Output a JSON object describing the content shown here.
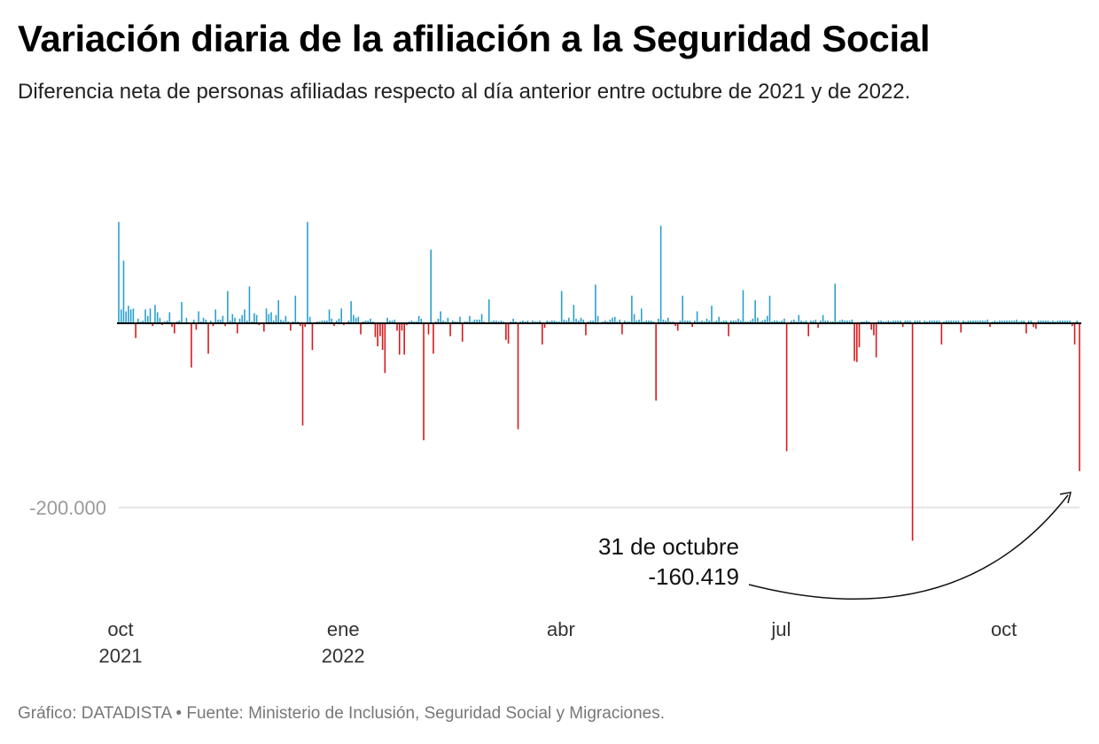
{
  "header": {
    "title": "Variación diaria de la afiliación a la Seguridad Social",
    "subtitle": "Diferencia neta de personas afiliadas respecto al día anterior entre octubre de 2021 y de 2022."
  },
  "footer": {
    "text": "Gráfico: DATADISTA • Fuente: Ministerio de Inclusión, Seguridad Social y Migraciones."
  },
  "colors": {
    "positive": "#2b9fcb",
    "negative": "#d7191c",
    "zero_line": "#000000",
    "gridline": "#dddddd",
    "tick_label": "#9a9a9a"
  },
  "chart_data": {
    "type": "bar",
    "title": "Variación diaria de la afiliación a la Seguridad Social",
    "xlabel": "",
    "ylabel": "",
    "ylim": [
      -310000,
      200000
    ],
    "y_ticks": [
      {
        "value": -200000,
        "label": "-200.000"
      }
    ],
    "x_ticks": [
      {
        "index": 0,
        "line1": "oct",
        "line2": "2021"
      },
      {
        "index": 92,
        "line1": "ene",
        "line2": "2022"
      },
      {
        "index": 182,
        "line1": "abr",
        "line2": ""
      },
      {
        "index": 273,
        "line1": "jul",
        "line2": ""
      },
      {
        "index": 365,
        "line1": "oct",
        "line2": ""
      }
    ],
    "start_date": "2021-10-01",
    "end_date": "2022-10-31",
    "series": [
      {
        "name": "Diferencia neta diaria",
        "values": [
          110000,
          15000,
          68000,
          13000,
          19000,
          15000,
          16000,
          -16000,
          5000,
          2000,
          3000,
          15000,
          8000,
          16000,
          -3000,
          20000,
          12000,
          6000,
          -2000,
          2000,
          3000,
          12000,
          -4000,
          -11000,
          2000,
          3000,
          23000,
          1000,
          6000,
          1000,
          -48000,
          4000,
          -7000,
          13000,
          2000,
          6000,
          4000,
          -33000,
          3000,
          -3000,
          15000,
          4000,
          4000,
          8000,
          -3000,
          35000,
          3000,
          10000,
          6000,
          -11000,
          5000,
          9000,
          15000,
          3000,
          40000,
          2000,
          11000,
          9000,
          -2000,
          1000,
          -9000,
          16000,
          10000,
          12000,
          3000,
          9000,
          25000,
          4000,
          3000,
          8000,
          2000,
          -8000,
          2000,
          30000,
          2000,
          -3000,
          -111000,
          -4000,
          110000,
          7000,
          -29000,
          1000,
          2000,
          2000,
          3000,
          3000,
          3000,
          15000,
          5000,
          -3000,
          3000,
          5000,
          16000,
          -2000,
          1000,
          3000,
          24000,
          9000,
          6000,
          7000,
          -12000,
          2000,
          3000,
          3000,
          5000,
          2000,
          -15000,
          -25000,
          -14000,
          -29000,
          -54000,
          6000,
          3000,
          3000,
          4000,
          -8000,
          -34000,
          -8000,
          -34000,
          -2000,
          2000,
          3000,
          2000,
          2000,
          8000,
          5000,
          -127000,
          1000,
          -12000,
          80000,
          -33000,
          2000,
          5000,
          13000,
          3000,
          2000,
          6000,
          -14000,
          3000,
          2000,
          2000,
          7000,
          -20000,
          2000,
          2000,
          8000,
          2000,
          4000,
          4000,
          4000,
          10000,
          2000,
          1000,
          26000,
          2000,
          3000,
          3000,
          2000,
          3000,
          2000,
          -18000,
          -22000,
          2000,
          5000,
          2000,
          -115000,
          2000,
          3000,
          2000,
          3000,
          1000,
          3000,
          2000,
          2000,
          3000,
          -23000,
          -5000,
          3000,
          2000,
          3000,
          3000,
          2000,
          2000,
          35000,
          4000,
          3000,
          6000,
          2000,
          20000,
          5000,
          3000,
          6000,
          4000,
          -13000,
          2000,
          3000,
          3000,
          42000,
          8000,
          1000,
          2000,
          3000,
          2000,
          4000,
          6000,
          7000,
          2000,
          4000,
          -12000,
          3000,
          2000,
          2000,
          30000,
          10000,
          3000,
          4000,
          16000,
          2000,
          3000,
          3000,
          3000,
          2000,
          -84000,
          5000,
          106000,
          4000,
          3000,
          6000,
          2000,
          2000,
          -3000,
          -8000,
          3000,
          30000,
          3000,
          3000,
          3000,
          -4000,
          3000,
          13000,
          2000,
          3000,
          2000,
          5000,
          3000,
          19000,
          2000,
          3000,
          7000,
          2000,
          3000,
          3000,
          -14000,
          3000,
          3000,
          3000,
          5000,
          3000,
          36000,
          2000,
          2000,
          3000,
          5000,
          25000,
          6000,
          2000,
          3000,
          4000,
          8000,
          30000,
          2000,
          3000,
          3000,
          2000,
          3000,
          5000,
          -139000,
          1000,
          3000,
          4000,
          2000,
          9000,
          3000,
          2000,
          3000,
          -14000,
          3000,
          3000,
          4000,
          -5000,
          3000,
          9000,
          3000,
          3000,
          2000,
          2000,
          43000,
          2000,
          3000,
          4000,
          3000,
          3000,
          3000,
          4000,
          -41000,
          -42000,
          -26000,
          2000,
          2000,
          3000,
          2000,
          -7000,
          -13000,
          -37000,
          3000,
          3000,
          2000,
          2000,
          3000,
          2000,
          3000,
          3000,
          3000,
          3000,
          -4000,
          3000,
          3000,
          3000,
          -236000,
          3000,
          3000,
          3000,
          1000,
          3000,
          2000,
          3000,
          3000,
          3000,
          3000,
          3000,
          -23000,
          2000,
          3000,
          3000,
          3000,
          3000,
          3000,
          3000,
          -10000,
          3000,
          2000,
          3000,
          3000,
          3000,
          3000,
          3000,
          3000,
          3000,
          3000,
          4000,
          -4000,
          2000,
          3000,
          2000,
          3000,
          3000,
          3000,
          3000,
          3000,
          3000,
          3000,
          4000,
          2000,
          3000,
          3000,
          -11000,
          3000,
          3000,
          -4000,
          -6000,
          3000,
          3000,
          3000,
          3000,
          3000,
          2000,
          3000,
          2000,
          3000,
          3000,
          3000,
          3000,
          3000,
          3000,
          -3000,
          -23000,
          3000,
          -160419
        ]
      }
    ],
    "annotation": {
      "line1": "31 de octubre",
      "line2": "-160.419"
    }
  }
}
